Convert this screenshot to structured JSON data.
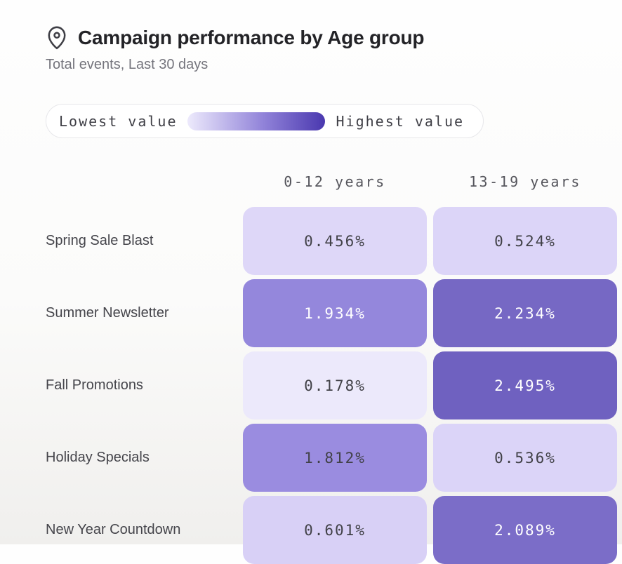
{
  "header": {
    "icon": "map-pin-icon",
    "title": "Campaign performance by Age group",
    "subtitle": "Total events, Last 30 days"
  },
  "legend": {
    "low_label": "Lowest value",
    "high_label": "Highest value",
    "gradient_start": "#edeafc",
    "gradient_mid": "#9183d9",
    "gradient_end": "#4a38af"
  },
  "chart_data": {
    "type": "heatmap",
    "title": "Campaign performance by Age group",
    "subtitle": "Total events, Last 30 days",
    "legend_position": "top",
    "columns": [
      "0-12 years",
      "13-19 years"
    ],
    "rows": [
      "Spring Sale Blast",
      "Summer Newsletter",
      "Fall Promotions",
      "Holiday Specials",
      "New Year Countdown"
    ],
    "values": [
      [
        0.456,
        0.524
      ],
      [
        1.934,
        2.234
      ],
      [
        0.178,
        2.495
      ],
      [
        1.812,
        0.536
      ],
      [
        0.601,
        2.089
      ]
    ],
    "display_values": [
      [
        "0.456%",
        "0.524%"
      ],
      [
        "1.934%",
        "2.234%"
      ],
      [
        "0.178%",
        "2.495%"
      ],
      [
        "1.812%",
        "0.536%"
      ],
      [
        "0.601%",
        "2.089%"
      ]
    ],
    "cell_colors": [
      [
        "#ded7f8",
        "#dcd5f8"
      ],
      [
        "#9487dc",
        "#7668c4"
      ],
      [
        "#ece9fb",
        "#6f61c0"
      ],
      [
        "#9a8ce0",
        "#dbd4f8"
      ],
      [
        "#d8d0f6",
        "#7b6dc8"
      ]
    ],
    "text_on_light": "#414147",
    "text_on_dark": "#ffffff"
  }
}
